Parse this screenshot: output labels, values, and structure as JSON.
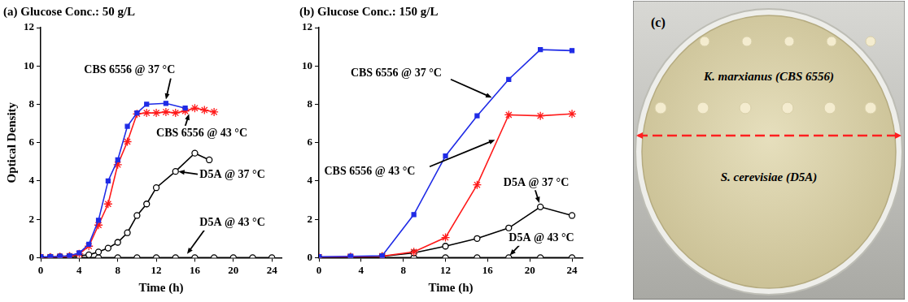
{
  "chart_data": [
    {
      "type": "line",
      "title": "(a) Glucose Conc.: 50 g/L",
      "x_label": "Time (h)",
      "y_label": "Optical Density",
      "xlim": [
        0,
        25
      ],
      "xticks": [
        0,
        4,
        8,
        12,
        16,
        20,
        24
      ],
      "ylim": [
        0,
        12
      ],
      "yticks": [
        0,
        2,
        4,
        6,
        8,
        10,
        12
      ],
      "grid": false,
      "series": [
        {
          "name": "CBS 6556 @ 37 °C",
          "color": "#1f2be6",
          "marker": "square",
          "line_style": "solid",
          "x": [
            0,
            1,
            2,
            3,
            4,
            5,
            6,
            7,
            8,
            9,
            10,
            11,
            13,
            15
          ],
          "values": [
            0.05,
            0.05,
            0.07,
            0.1,
            0.25,
            0.7,
            1.95,
            4.0,
            5.1,
            6.85,
            7.55,
            8.0,
            8.05,
            7.8
          ]
        },
        {
          "name": "CBS 6556 @ 43 °C",
          "color": "#ff1a1a",
          "marker": "star",
          "line_style": "solid",
          "x": [
            0,
            1,
            2,
            3,
            4,
            5,
            6,
            7,
            8,
            9,
            10,
            11,
            12,
            13,
            14,
            15,
            16,
            17,
            18
          ],
          "values": [
            0.03,
            0.03,
            0.05,
            0.08,
            0.2,
            0.6,
            1.7,
            2.8,
            4.85,
            6.05,
            7.5,
            7.55,
            7.55,
            7.6,
            7.55,
            7.65,
            7.8,
            7.7,
            7.6
          ]
        },
        {
          "name": "D5A @ 37 °C",
          "color": "#000000",
          "marker": "open_circle",
          "line_style": "solid",
          "x": [
            0,
            1,
            2,
            3,
            4,
            5,
            6,
            7,
            8,
            9,
            10,
            11,
            12,
            14,
            16,
            17.5
          ],
          "values": [
            0.02,
            0.03,
            0.05,
            0.07,
            0.1,
            0.15,
            0.3,
            0.5,
            0.8,
            1.3,
            2.2,
            2.8,
            3.65,
            4.5,
            5.45,
            5.1
          ]
        },
        {
          "name": "D5A @ 43 °C",
          "color": "#000000",
          "marker": "open_circle",
          "line_style": "solid",
          "x": [
            0,
            2,
            4,
            6,
            8,
            10,
            12,
            14,
            16,
            18,
            20,
            22,
            24
          ],
          "values": [
            0,
            0,
            0,
            0,
            0,
            0,
            0,
            0,
            0,
            0,
            0,
            0,
            0
          ]
        }
      ]
    },
    {
      "type": "line",
      "title": "(b) Glucose Conc.: 150 g/L",
      "x_label": "Time (h)",
      "xlim": [
        0,
        25
      ],
      "xticks": [
        0,
        4,
        8,
        12,
        16,
        20,
        24
      ],
      "ylim": [
        0,
        12
      ],
      "yticks": [
        0,
        2,
        4,
        6,
        8,
        10,
        12
      ],
      "grid": false,
      "series": [
        {
          "name": "CBS 6556 @ 37 °C",
          "color": "#1f2be6",
          "marker": "square",
          "line_style": "solid",
          "x": [
            0,
            3,
            6,
            9,
            12,
            15,
            18,
            21,
            24
          ],
          "values": [
            0.05,
            0.07,
            0.1,
            2.25,
            5.3,
            7.4,
            9.3,
            10.85,
            10.8
          ]
        },
        {
          "name": "CBS 6556 @ 43 °C",
          "color": "#ff1a1a",
          "marker": "star",
          "line_style": "solid",
          "x": [
            0,
            3,
            6,
            9,
            12,
            15,
            18,
            21,
            24
          ],
          "values": [
            0.03,
            0.05,
            0.08,
            0.3,
            1.05,
            3.8,
            7.45,
            7.4,
            7.5
          ]
        },
        {
          "name": "D5A @ 37 °C",
          "color": "#000000",
          "marker": "open_circle",
          "line_style": "solid",
          "x": [
            0,
            3,
            6,
            9,
            12,
            15,
            18,
            21,
            24
          ],
          "values": [
            0.02,
            0.03,
            0.07,
            0.25,
            0.6,
            1.0,
            1.55,
            2.65,
            2.2
          ]
        },
        {
          "name": "D5A @ 43 °C",
          "color": "#000000",
          "marker": "open_circle",
          "line_style": "solid",
          "x": [
            0,
            3,
            6,
            9,
            12,
            15,
            18,
            21,
            24
          ],
          "values": [
            0,
            0,
            0,
            0,
            0,
            0,
            0,
            0,
            0
          ]
        }
      ]
    }
  ],
  "image": {
    "label": "(c)",
    "texts": [
      "K. marxianus (CBS 6556)",
      "S. cerevisiae (D5A)"
    ]
  }
}
